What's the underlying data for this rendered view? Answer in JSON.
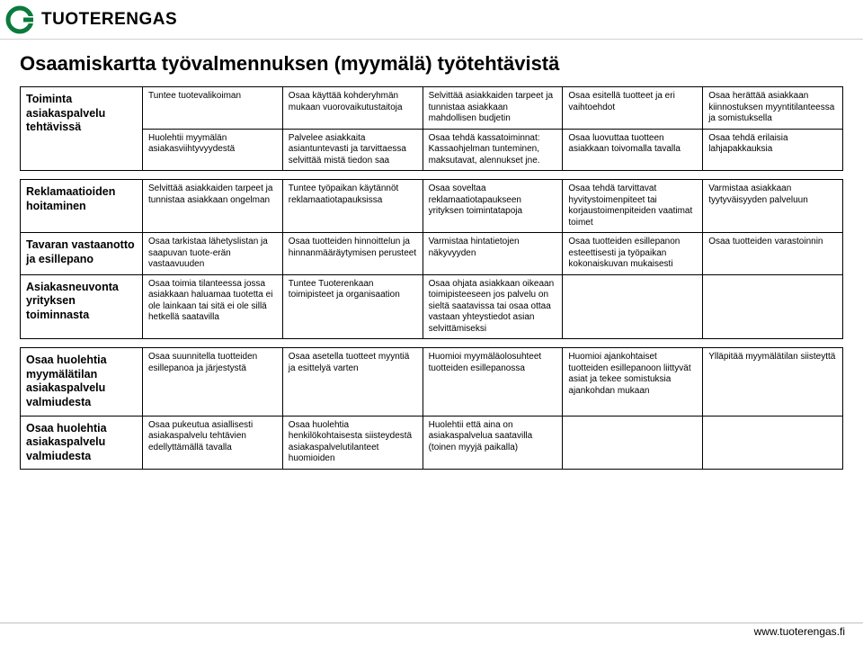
{
  "brand": "TUOTERENGAS",
  "logo_color": "#0a7a3d",
  "title": "Osaamiskartta työvalmennuksen (myymälä) työtehtävistä",
  "footer": "www.tuoterengas.fi",
  "table": {
    "sections": [
      {
        "header": "Toiminta asiakaspalvelu tehtävissä",
        "rows": [
          [
            "Tuntee tuotevalikoiman",
            "Osaa käyttää kohderyhmän mukaan vuorovaikutustaitoja",
            "Selvittää asiakkaiden tarpeet ja tunnistaa asiakkaan mahdollisen budjetin",
            "Osaa esitellä tuotteet ja eri vaihtoehdot",
            "Osaa herättää asiakkaan kiinnostuksen myyntitilanteessa ja somistuksella"
          ],
          [
            "Huolehtii myymälän asiakasviihtyvyydestä",
            "Palvelee asiakkaita asiantuntevasti ja tarvittaessa selvittää  mistä tiedon saa",
            "Osaa tehdä kassatoiminnat: Kassaohjelman tunteminen, maksutavat, alennukset  jne.",
            "Osaa luovuttaa tuotteen asiakkaan toivomalla tavalla",
            "Osaa tehdä erilaisia lahjapakkauksia"
          ]
        ]
      },
      {
        "header": "Reklamaatioiden hoitaminen",
        "rows": [
          [
            "Selvittää asiakkaiden tarpeet ja tunnistaa asiakkaan ongelman",
            "Tuntee työpaikan käytännöt reklamaatiotapauksissa",
            "Osaa soveltaa reklamaatiotapaukseen yrityksen toimintatapoja",
            "Osaa tehdä tarvittavat hyvitystoimenpiteet  tai korjaustoimenpiteiden vaatimat toimet",
            "Varmistaa asiakkaan tyytyväisyyden palveluun"
          ]
        ]
      },
      {
        "header": "Tavaran vastaanotto ja esillepano",
        "rows": [
          [
            "Osaa tarkistaa lähetyslistan ja saapuvan tuote-erän vastaavuuden",
            "Osaa tuotteiden hinnoittelun ja hinnanmääräytymisen perusteet",
            "Varmistaa hintatietojen näkyvyyden",
            "Osaa tuotteiden esillepanon esteettisesti ja työpaikan kokonaiskuvan mukaisesti",
            "Osaa tuotteiden varastoinnin"
          ]
        ]
      },
      {
        "header": "Asiakasneuvonta yrityksen toiminnasta",
        "rows": [
          [
            "Osaa toimia tilanteessa jossa asiakkaan haluamaa tuotetta ei ole lainkaan  tai sitä ei ole sillä hetkellä saatavilla",
            "Tuntee Tuoterenkaan toimipisteet ja organisaation",
            "Osaa ohjata asiakkaan oikeaan toimipisteeseen jos palvelu on sieltä saatavissa tai osaa ottaa vastaan yhteystiedot asian selvittämiseksi",
            "",
            ""
          ]
        ]
      },
      {
        "header": "Osaa huolehtia myymälätilan asiakaspalvelu valmiudesta",
        "rows": [
          [
            "Osaa suunnitella tuotteiden esillepanoa ja järjestystä",
            "Osaa asetella tuotteet myyntiä ja esittelyä varten",
            "Huomioi myymäläolosuhteet tuotteiden esillepanossa",
            "Huomioi ajankohtaiset tuotteiden esillepanoon liittyvät asiat ja tekee somistuksia ajankohdan mukaan",
            "Ylläpitää myymälätilan siisteyttä"
          ]
        ]
      },
      {
        "header": "Osaa huolehtia asiakaspalvelu valmiudesta",
        "rows": [
          [
            "Osaa pukeutua asiallisesti asiakaspalvelu tehtävien edellyttämällä tavalla",
            "Osaa huolehtia henkilökohtaisesta siisteydestä asiakaspalvelutilanteet huomioiden",
            "Huolehtii että aina on asiakaspalvelua saatavilla (toinen myyjä paikalla)",
            "",
            ""
          ]
        ]
      }
    ]
  }
}
